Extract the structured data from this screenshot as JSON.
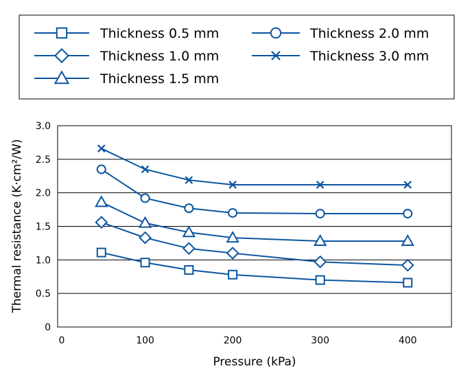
{
  "chart_data": {
    "type": "line",
    "title": "",
    "xlabel": "Pressure (kPa)",
    "ylabel": "Thermal resistance (K·cm²/W)",
    "xlim": [
      0,
      450
    ],
    "ylim": [
      0,
      3.0
    ],
    "x_ticks": [
      "0",
      "100",
      "200",
      "300",
      "400"
    ],
    "y_ticks": [
      "0",
      "0.5",
      "1.0",
      "1.5",
      "2.0",
      "2.5",
      "3.0"
    ],
    "grid": "horizontal",
    "legend_position": "top",
    "x": [
      50,
      100,
      150,
      200,
      300,
      400
    ],
    "series": [
      {
        "name": "Thickness 0.5 mm",
        "marker": "square",
        "values": [
          1.11,
          0.96,
          0.85,
          0.78,
          0.7,
          0.66
        ]
      },
      {
        "name": "Thickness 1.0 mm",
        "marker": "diamond",
        "values": [
          1.56,
          1.33,
          1.17,
          1.1,
          0.97,
          0.92
        ]
      },
      {
        "name": "Thickness 1.5 mm",
        "marker": "triangle",
        "values": [
          1.86,
          1.55,
          1.41,
          1.33,
          1.28,
          1.28
        ]
      },
      {
        "name": "Thickness 2.0 mm",
        "marker": "circle",
        "values": [
          2.35,
          1.92,
          1.77,
          1.7,
          1.69,
          1.69
        ]
      },
      {
        "name": "Thickness 3.0 mm",
        "marker": "x",
        "values": [
          2.66,
          2.35,
          2.19,
          2.12,
          2.12,
          2.12
        ]
      }
    ],
    "colors": {
      "series": "#0b55a0",
      "axis": "#000000",
      "grid": "#000000"
    }
  }
}
